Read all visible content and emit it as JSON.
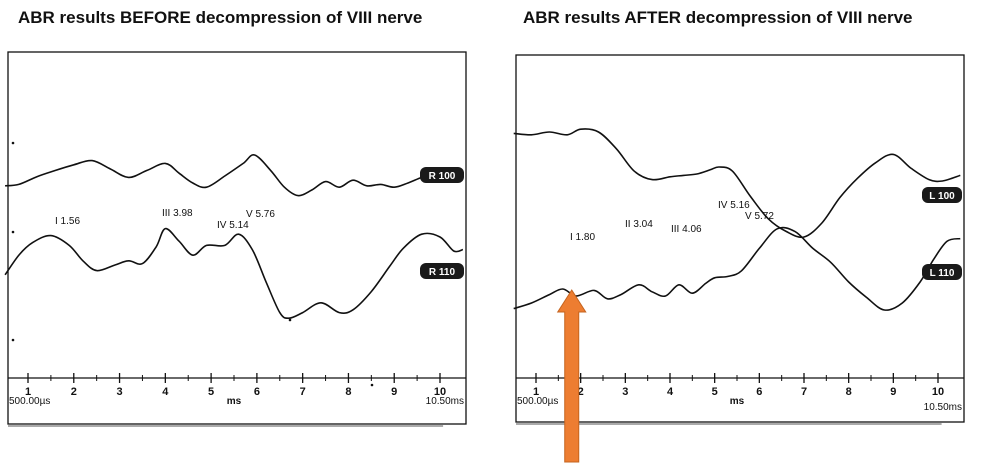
{
  "titles": {
    "before": "ABR results BEFORE decompression of VIII nerve",
    "after": "ABR results AFTER decompression of VIII nerve"
  },
  "colors": {
    "trace": "#111111",
    "arrow": "#ed7d31",
    "arrow_stroke": "#c5641f"
  },
  "chart_data": [
    {
      "type": "line",
      "title": "ABR results BEFORE decompression of VIII nerve",
      "xlabel": "ms",
      "xlim": [
        0.5,
        10.5
      ],
      "x_ticks": [
        1,
        2,
        3,
        4,
        5,
        6,
        7,
        8,
        9,
        10
      ],
      "x_start_label": "500.00µs",
      "x_end_label": "10.50ms",
      "series": [
        {
          "name": "R 100",
          "x": [
            0.5,
            0.8,
            1.2,
            1.6,
            2.0,
            2.4,
            2.8,
            3.2,
            3.6,
            4.0,
            4.3,
            4.6,
            4.9,
            5.3,
            5.7,
            5.95,
            6.3,
            6.6,
            6.9,
            7.2,
            7.5,
            7.8,
            8.1,
            8.4,
            8.7,
            9.0,
            9.3,
            9.6,
            9.9,
            10.2,
            10.5
          ],
          "y": [
            0.15,
            0.2,
            0.48,
            0.7,
            0.9,
            1.05,
            0.75,
            0.45,
            0.7,
            0.95,
            0.6,
            0.25,
            0.1,
            0.5,
            0.95,
            1.25,
            0.7,
            0.1,
            -0.2,
            0.0,
            0.3,
            0.1,
            0.35,
            0.15,
            0.2,
            0.1,
            0.25,
            0.45,
            0.6,
            0.5,
            0.7
          ]
        },
        {
          "name": "R 110",
          "x": [
            0.5,
            0.8,
            1.1,
            1.5,
            1.9,
            2.2,
            2.5,
            2.9,
            3.2,
            3.5,
            3.8,
            4.0,
            4.3,
            4.6,
            4.9,
            5.3,
            5.6,
            5.9,
            6.2,
            6.5,
            6.7,
            7.0,
            7.4,
            7.8,
            8.1,
            8.5,
            8.9,
            9.2,
            9.6,
            10.0,
            10.3,
            10.5
          ],
          "y": [
            -0.6,
            0.1,
            0.55,
            0.8,
            0.45,
            -0.1,
            -0.45,
            -0.25,
            -0.1,
            -0.2,
            0.4,
            1.05,
            0.6,
            0.1,
            0.45,
            0.45,
            0.85,
            0.3,
            -0.85,
            -1.95,
            -2.15,
            -1.95,
            -1.6,
            -1.95,
            -1.85,
            -1.2,
            -0.3,
            0.35,
            0.85,
            0.75,
            0.25,
            0.3
          ]
        }
      ],
      "peak_labels": [
        {
          "text": "I 1.56",
          "x": 1.56,
          "y": 0.0
        },
        {
          "text": "III 3.98",
          "x": 3.98,
          "y": 0.0
        },
        {
          "text": "IV 5.14",
          "x": 5.14,
          "y": -0.7
        },
        {
          "text": "V 5.76",
          "x": 5.76,
          "y": 0.0
        }
      ],
      "trace_tags": [
        {
          "text": "R 100",
          "series": "R 100"
        },
        {
          "text": "R 110",
          "series": "R 110"
        }
      ]
    },
    {
      "type": "line",
      "title": "ABR results AFTER decompression of VIII nerve",
      "xlabel": "ms",
      "xlim": [
        0.5,
        10.5
      ],
      "x_ticks": [
        1,
        2,
        3,
        4,
        5,
        6,
        7,
        8,
        9,
        10
      ],
      "x_start_label": "500.00µs",
      "x_end_label": "10.50ms",
      "series": [
        {
          "name": "L 100",
          "x": [
            0.5,
            0.9,
            1.3,
            1.7,
            2.0,
            2.4,
            2.8,
            3.2,
            3.6,
            4.0,
            4.3,
            4.6,
            4.9,
            5.1,
            5.4,
            5.8,
            6.2,
            6.6,
            7.0,
            7.4,
            7.8,
            8.2,
            8.6,
            9.0,
            9.4,
            9.8,
            10.1,
            10.5
          ],
          "y": [
            0.95,
            0.9,
            1.0,
            0.9,
            1.1,
            1.0,
            0.4,
            -0.4,
            -0.7,
            -0.6,
            -0.55,
            -0.5,
            -0.35,
            -0.25,
            -0.4,
            -1.3,
            -2.1,
            -2.55,
            -2.75,
            -2.25,
            -1.35,
            -0.65,
            -0.1,
            0.2,
            -0.3,
            -0.7,
            -0.75,
            -0.55
          ]
        },
        {
          "name": "L 110",
          "x": [
            0.5,
            0.9,
            1.3,
            1.6,
            1.9,
            2.3,
            2.6,
            2.9,
            3.3,
            3.6,
            3.9,
            4.2,
            4.5,
            4.8,
            5.0,
            5.3,
            5.6,
            6.0,
            6.4,
            6.8,
            7.2,
            7.6,
            8.0,
            8.4,
            8.8,
            9.2,
            9.6,
            9.9,
            10.2,
            10.5
          ],
          "y": [
            -1.45,
            -1.25,
            -0.95,
            -0.75,
            -1.0,
            -0.8,
            -1.1,
            -0.95,
            -0.6,
            -0.85,
            -1.0,
            -0.6,
            -0.9,
            -0.55,
            -0.35,
            -0.3,
            -0.1,
            0.7,
            1.4,
            1.3,
            0.7,
            0.2,
            -0.5,
            -1.05,
            -1.5,
            -1.25,
            -0.5,
            0.3,
            0.95,
            1.05
          ]
        }
      ],
      "peak_labels": [
        {
          "text": "I 1.80",
          "x": 1.8,
          "y": 0.0
        },
        {
          "text": "II 3.04",
          "x": 3.04,
          "y": 0.0
        },
        {
          "text": "III 4.06",
          "x": 4.06,
          "y": 0.0
        },
        {
          "text": "IV 5.16",
          "x": 5.16,
          "y": 0.0
        },
        {
          "text": "V 5.72",
          "x": 5.72,
          "y": 0.0
        }
      ],
      "trace_tags": [
        {
          "text": "L 100",
          "series": "L 100"
        },
        {
          "text": "L 110",
          "series": "L 110"
        }
      ],
      "annotation": {
        "type": "arrow",
        "points_to_x": 1.8,
        "direction": "up"
      }
    }
  ]
}
